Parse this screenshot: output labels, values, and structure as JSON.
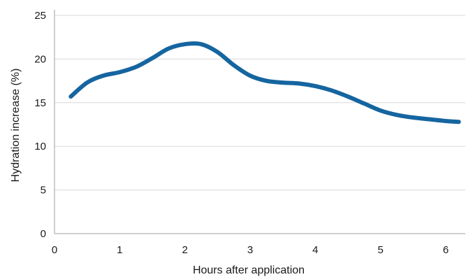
{
  "chart_data": {
    "type": "line",
    "title": "",
    "xlabel": "Hours after application",
    "ylabel": "Hydration increase (%)",
    "xlim": [
      0,
      6.3
    ],
    "ylim": [
      0,
      25
    ],
    "x_ticks": [
      0,
      1,
      2,
      3,
      4,
      5,
      6
    ],
    "y_ticks": [
      0,
      5,
      10,
      15,
      20,
      25
    ],
    "grid": "horizontal",
    "legend": "none",
    "series": [
      {
        "color": "#1565a0",
        "x": [
          0.25,
          0.5,
          0.75,
          1.0,
          1.25,
          1.5,
          1.75,
          2.0,
          2.25,
          2.5,
          2.75,
          3.0,
          3.25,
          3.5,
          3.75,
          4.0,
          4.25,
          4.5,
          4.75,
          5.0,
          5.25,
          5.5,
          5.75,
          6.0,
          6.2
        ],
        "y": [
          15.7,
          17.3,
          18.1,
          18.5,
          19.1,
          20.1,
          21.2,
          21.7,
          21.7,
          20.8,
          19.3,
          18.1,
          17.5,
          17.3,
          17.2,
          16.9,
          16.4,
          15.7,
          14.9,
          14.1,
          13.6,
          13.3,
          13.1,
          12.9,
          12.8
        ]
      }
    ]
  }
}
